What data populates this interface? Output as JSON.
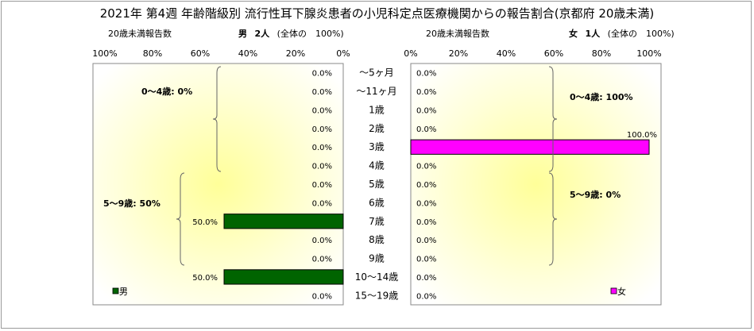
{
  "title": "2021年 第4週 年齢階級別 流行性耳下腺炎患者の小児科定点医療機関からの報告割合(京都府 20歳未満)",
  "left_panel": {
    "report_label": "20歳未満報告数",
    "sex_label": "男",
    "count": "2人",
    "share_text": "(全体の　100%)",
    "legend": "男",
    "bracket_labels": [
      "0～4歳: 0%",
      "5～9歳: 50%"
    ]
  },
  "right_panel": {
    "report_label": "20歳未満報告数",
    "sex_label": "女",
    "count": "1人",
    "share_text": "(全体の　100%)",
    "legend": "女",
    "bracket_labels": [
      "0～4歳: 100%",
      "5～9歳: 0%"
    ]
  },
  "colors": {
    "male": "#006400",
    "female": "#ff00ff"
  },
  "chart_data": {
    "type": "bar",
    "orientation": "horizontal-back-to-back",
    "categories": [
      "～5ヶ月",
      "～11ヶ月",
      "1歳",
      "2歳",
      "3歳",
      "4歳",
      "5歳",
      "6歳",
      "7歳",
      "8歳",
      "9歳",
      "10～14歳",
      "15～19歳"
    ],
    "series": [
      {
        "name": "男",
        "values": [
          0.0,
          0.0,
          0.0,
          0.0,
          0.0,
          0.0,
          0.0,
          0.0,
          50.0,
          0.0,
          0.0,
          50.0,
          0.0
        ]
      },
      {
        "name": "女",
        "values": [
          0.0,
          0.0,
          0.0,
          0.0,
          100.0,
          0.0,
          0.0,
          0.0,
          0.0,
          0.0,
          0.0,
          0.0,
          0.0
        ]
      }
    ],
    "value_labels": {
      "男": [
        "0.0%",
        "0.0%",
        "0.0%",
        "0.0%",
        "0.0%",
        "0.0%",
        "0.0%",
        "0.0%",
        "50.0%",
        "0.0%",
        "0.0%",
        "50.0%",
        "0.0%"
      ],
      "女": [
        "0.0%",
        "0.0%",
        "0.0%",
        "0.0%",
        "100.0%",
        "0.0%",
        "0.0%",
        "0.0%",
        "0.0%",
        "0.0%",
        "0.0%",
        "0.0%",
        "0.0%"
      ]
    },
    "xlim": [
      0,
      100
    ],
    "x_ticks": [
      "0%",
      "20%",
      "40%",
      "60%",
      "80%",
      "100%"
    ],
    "grid": false,
    "legend_position": "bottom-left / bottom-right"
  }
}
